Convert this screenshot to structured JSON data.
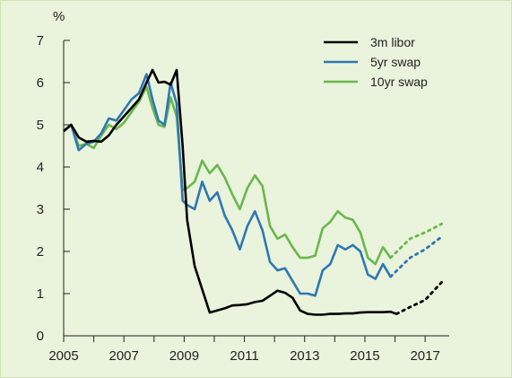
{
  "chart_data": {
    "type": "line",
    "ylabel": "%",
    "xlim": [
      2005,
      2017.8
    ],
    "ylim": [
      0,
      7
    ],
    "x_ticks": [
      2005,
      2007,
      2009,
      2011,
      2013,
      2015,
      2017
    ],
    "y_ticks": [
      0,
      1,
      2,
      3,
      4,
      5,
      6,
      7
    ],
    "legend_position": "top-right",
    "series": [
      {
        "name": "3m libor",
        "color": "#000000",
        "values": [
          [
            2005.0,
            4.85
          ],
          [
            2005.25,
            5.0
          ],
          [
            2005.5,
            4.7
          ],
          [
            2005.75,
            4.6
          ],
          [
            2006.0,
            4.62
          ],
          [
            2006.25,
            4.6
          ],
          [
            2006.5,
            4.75
          ],
          [
            2006.75,
            5.0
          ],
          [
            2007.0,
            5.2
          ],
          [
            2007.25,
            5.4
          ],
          [
            2007.5,
            5.6
          ],
          [
            2007.75,
            6.0
          ],
          [
            2007.95,
            6.3
          ],
          [
            2008.15,
            6.0
          ],
          [
            2008.35,
            6.02
          ],
          [
            2008.55,
            5.95
          ],
          [
            2008.75,
            6.3
          ],
          [
            2008.95,
            4.5
          ],
          [
            2009.1,
            2.75
          ],
          [
            2009.35,
            1.65
          ],
          [
            2009.6,
            1.1
          ],
          [
            2009.85,
            0.55
          ],
          [
            2010.1,
            0.6
          ],
          [
            2010.35,
            0.65
          ],
          [
            2010.6,
            0.72
          ],
          [
            2010.85,
            0.73
          ],
          [
            2011.1,
            0.75
          ],
          [
            2011.35,
            0.8
          ],
          [
            2011.6,
            0.83
          ],
          [
            2011.85,
            0.95
          ],
          [
            2012.1,
            1.07
          ],
          [
            2012.35,
            1.02
          ],
          [
            2012.6,
            0.9
          ],
          [
            2012.85,
            0.6
          ],
          [
            2013.1,
            0.52
          ],
          [
            2013.35,
            0.5
          ],
          [
            2013.6,
            0.5
          ],
          [
            2013.85,
            0.52
          ],
          [
            2014.1,
            0.52
          ],
          [
            2014.35,
            0.53
          ],
          [
            2014.6,
            0.53
          ],
          [
            2014.85,
            0.55
          ],
          [
            2015.1,
            0.56
          ],
          [
            2015.35,
            0.56
          ],
          [
            2015.6,
            0.56
          ],
          [
            2015.85,
            0.57
          ],
          [
            2016.05,
            0.52
          ]
        ],
        "forecast": [
          [
            2016.05,
            0.52
          ],
          [
            2016.5,
            0.68
          ],
          [
            2017.0,
            0.85
          ],
          [
            2017.55,
            1.27
          ]
        ]
      },
      {
        "name": "5yr swap",
        "color": "#2d78b2",
        "values": [
          [
            2005.0,
            4.85
          ],
          [
            2005.25,
            5.0
          ],
          [
            2005.5,
            4.4
          ],
          [
            2005.75,
            4.55
          ],
          [
            2006.0,
            4.6
          ],
          [
            2006.25,
            4.8
          ],
          [
            2006.5,
            5.15
          ],
          [
            2006.75,
            5.1
          ],
          [
            2007.0,
            5.35
          ],
          [
            2007.25,
            5.6
          ],
          [
            2007.5,
            5.75
          ],
          [
            2007.75,
            6.2
          ],
          [
            2007.95,
            5.6
          ],
          [
            2008.15,
            5.1
          ],
          [
            2008.35,
            5.0
          ],
          [
            2008.55,
            6.0
          ],
          [
            2008.75,
            5.5
          ],
          [
            2008.95,
            3.2
          ],
          [
            2009.1,
            3.1
          ],
          [
            2009.35,
            3.0
          ],
          [
            2009.6,
            3.65
          ],
          [
            2009.85,
            3.2
          ],
          [
            2010.1,
            3.4
          ],
          [
            2010.35,
            2.85
          ],
          [
            2010.6,
            2.5
          ],
          [
            2010.85,
            2.05
          ],
          [
            2011.1,
            2.6
          ],
          [
            2011.35,
            2.95
          ],
          [
            2011.6,
            2.5
          ],
          [
            2011.85,
            1.75
          ],
          [
            2012.1,
            1.55
          ],
          [
            2012.35,
            1.6
          ],
          [
            2012.6,
            1.3
          ],
          [
            2012.85,
            1.0
          ],
          [
            2013.1,
            1.0
          ],
          [
            2013.35,
            0.95
          ],
          [
            2013.6,
            1.55
          ],
          [
            2013.85,
            1.7
          ],
          [
            2014.1,
            2.15
          ],
          [
            2014.35,
            2.05
          ],
          [
            2014.6,
            2.15
          ],
          [
            2014.85,
            2.0
          ],
          [
            2015.1,
            1.45
          ],
          [
            2015.35,
            1.35
          ],
          [
            2015.6,
            1.7
          ],
          [
            2015.85,
            1.4
          ]
        ],
        "forecast": [
          [
            2015.85,
            1.4
          ],
          [
            2016.5,
            1.85
          ],
          [
            2017.0,
            2.05
          ],
          [
            2017.55,
            2.35
          ]
        ]
      },
      {
        "name": "10yr swap",
        "color": "#6ab74e",
        "values": [
          [
            2005.0,
            4.85
          ],
          [
            2005.25,
            5.0
          ],
          [
            2005.5,
            4.5
          ],
          [
            2005.75,
            4.55
          ],
          [
            2006.0,
            4.45
          ],
          [
            2006.25,
            4.75
          ],
          [
            2006.5,
            5.0
          ],
          [
            2006.75,
            4.9
          ],
          [
            2007.0,
            5.05
          ],
          [
            2007.25,
            5.3
          ],
          [
            2007.5,
            5.55
          ],
          [
            2007.75,
            5.9
          ],
          [
            2007.95,
            5.4
          ],
          [
            2008.15,
            5.0
          ],
          [
            2008.35,
            4.95
          ],
          [
            2008.55,
            5.65
          ],
          [
            2008.75,
            5.2
          ],
          [
            2008.95,
            3.45
          ],
          [
            2009.1,
            3.5
          ],
          [
            2009.35,
            3.65
          ],
          [
            2009.6,
            4.15
          ],
          [
            2009.85,
            3.85
          ],
          [
            2010.1,
            4.05
          ],
          [
            2010.35,
            3.75
          ],
          [
            2010.6,
            3.35
          ],
          [
            2010.85,
            3.0
          ],
          [
            2011.1,
            3.5
          ],
          [
            2011.35,
            3.8
          ],
          [
            2011.6,
            3.55
          ],
          [
            2011.85,
            2.6
          ],
          [
            2012.1,
            2.3
          ],
          [
            2012.35,
            2.4
          ],
          [
            2012.6,
            2.1
          ],
          [
            2012.85,
            1.85
          ],
          [
            2013.1,
            1.85
          ],
          [
            2013.35,
            1.9
          ],
          [
            2013.6,
            2.55
          ],
          [
            2013.85,
            2.7
          ],
          [
            2014.1,
            2.95
          ],
          [
            2014.35,
            2.8
          ],
          [
            2014.6,
            2.75
          ],
          [
            2014.85,
            2.45
          ],
          [
            2015.1,
            1.85
          ],
          [
            2015.35,
            1.7
          ],
          [
            2015.6,
            2.1
          ],
          [
            2015.85,
            1.85
          ]
        ],
        "forecast": [
          [
            2015.85,
            1.85
          ],
          [
            2016.5,
            2.3
          ],
          [
            2017.0,
            2.45
          ],
          [
            2017.55,
            2.65
          ]
        ]
      }
    ]
  }
}
